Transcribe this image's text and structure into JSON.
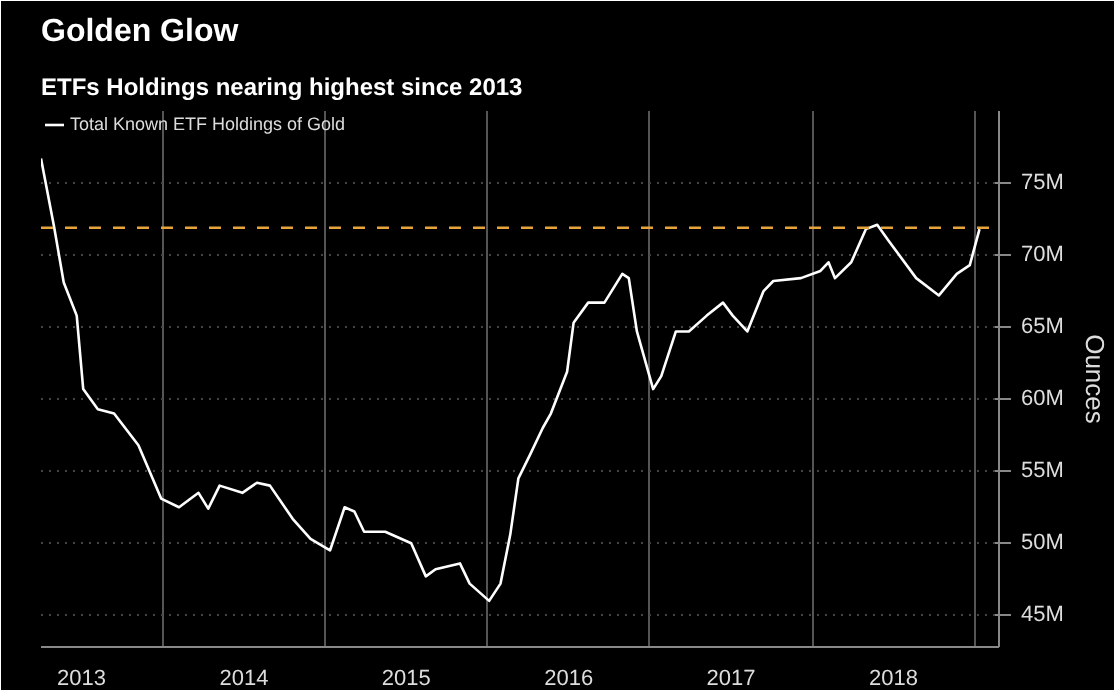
{
  "chart_data": {
    "type": "line",
    "title": "Golden Glow",
    "subtitle": "ETFs Holdings nearing highest since 2013",
    "ylabel": "Ounces",
    "x": [
      2013.25,
      2013.33,
      2013.39,
      2013.47,
      2013.51,
      2013.6,
      2013.7,
      2013.85,
      2013.99,
      2014.1,
      2014.22,
      2014.28,
      2014.35,
      2014.49,
      2014.58,
      2014.66,
      2014.8,
      2014.91,
      2015.03,
      2015.12,
      2015.18,
      2015.24,
      2015.37,
      2015.53,
      2015.62,
      2015.68,
      2015.83,
      2015.89,
      2016.01,
      2016.08,
      2016.14,
      2016.19,
      2016.26,
      2016.34,
      2016.39,
      2016.49,
      2016.53,
      2016.62,
      2016.72,
      2016.83,
      2016.87,
      2016.92,
      2017.02,
      2017.07,
      2017.16,
      2017.24,
      2017.35,
      2017.45,
      2017.51,
      2017.6,
      2017.7,
      2017.76,
      2017.93,
      2018.05,
      2018.1,
      2018.14,
      2018.24,
      2018.33,
      2018.4,
      2018.47,
      2018.64,
      2018.78,
      2018.89,
      2018.97,
      2019.03
    ],
    "series": [
      {
        "name": "Total Known ETF Holdings of Gold",
        "color": "#ffffff",
        "values": [
          76.7,
          72.0,
          68.1,
          65.8,
          60.7,
          59.3,
          59.0,
          56.8,
          53.1,
          52.5,
          53.5,
          52.4,
          54.0,
          53.5,
          54.2,
          54.0,
          51.7,
          50.3,
          49.5,
          52.5,
          52.2,
          50.8,
          50.8,
          50.0,
          47.7,
          48.2,
          48.6,
          47.2,
          46.0,
          47.2,
          50.6,
          54.5,
          56.1,
          58.0,
          59.0,
          61.9,
          65.3,
          66.7,
          66.7,
          68.7,
          68.4,
          64.7,
          60.7,
          61.6,
          64.7,
          64.7,
          65.8,
          66.7,
          65.8,
          64.7,
          67.5,
          68.2,
          68.4,
          68.9,
          69.5,
          68.4,
          69.5,
          71.8,
          72.1,
          71.0,
          68.4,
          67.2,
          68.7,
          69.3,
          71.8
        ]
      }
    ],
    "xlim": [
      2013.25,
      2019.15
    ],
    "ylim": [
      42.8,
      80
    ],
    "xticks": [
      {
        "value": 2013.5,
        "label": "2013"
      },
      {
        "value": 2014,
        "label": null
      },
      {
        "value": 2014.5,
        "label": "2014"
      },
      {
        "value": 2015,
        "label": null
      },
      {
        "value": 2015.5,
        "label": "2015"
      },
      {
        "value": 2016,
        "label": null
      },
      {
        "value": 2016.5,
        "label": "2016"
      },
      {
        "value": 2017,
        "label": null
      },
      {
        "value": 2017.5,
        "label": "2017"
      },
      {
        "value": 2018,
        "label": null
      },
      {
        "value": 2018.5,
        "label": "2018"
      },
      {
        "value": 2019,
        "label": null
      }
    ],
    "yticks": [
      {
        "value": 45,
        "label": "45M"
      },
      {
        "value": 50,
        "label": "50M"
      },
      {
        "value": 55,
        "label": "55M"
      },
      {
        "value": 60,
        "label": "60M"
      },
      {
        "value": 65,
        "label": "65M"
      },
      {
        "value": 70,
        "label": "70M"
      },
      {
        "value": 75,
        "label": "75M"
      }
    ],
    "ref_lines": [
      {
        "axis": "y",
        "value": 71.9,
        "label": null,
        "color": "#e8a33c",
        "line_style": "dashed"
      }
    ],
    "grid": true,
    "legend": "top left",
    "line_style": "solid",
    "marker": "none"
  }
}
